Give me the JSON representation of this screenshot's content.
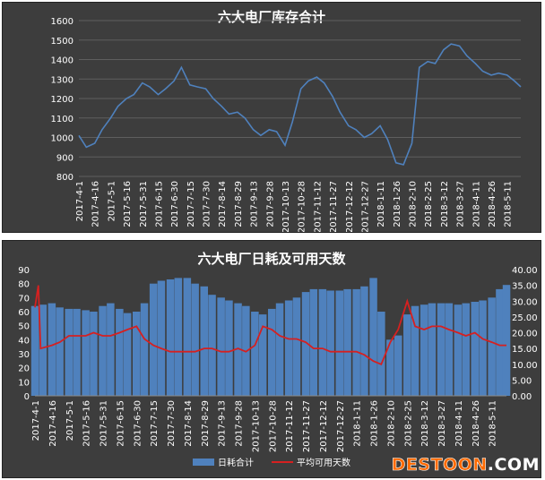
{
  "chart_data": [
    {
      "type": "line",
      "title": "六大电厂库存合计",
      "ylim": [
        800,
        1600
      ],
      "yticks": [
        800,
        900,
        1000,
        1100,
        1200,
        1300,
        1400,
        1500,
        1600
      ],
      "xtick_labels": [
        "2017-4-1",
        "2017-4-16",
        "2017-5-1",
        "2017-5-16",
        "2017-5-31",
        "2017-6-15",
        "2017-6-30",
        "2017-7-15",
        "2017-7-30",
        "2017-8-14",
        "2017-8-29",
        "2017-9-13",
        "2017-9-28",
        "2017-10-13",
        "2017-10-28",
        "2017-11-12",
        "2017-11-27",
        "2017-12-12",
        "2017-12-27",
        "2018-1-11",
        "2018-1-26",
        "2018-2-10",
        "2018-2-25",
        "2018-3-12",
        "2018-3-27",
        "2018-4-11",
        "2018-4-26",
        "2018-5-11"
      ],
      "grid": true,
      "series": [
        {
          "color": "#4f81bd",
          "x": [
            "2017-4-1",
            "2017-4-8",
            "2017-4-16",
            "2017-4-23",
            "2017-5-1",
            "2017-5-8",
            "2017-5-16",
            "2017-5-23",
            "2017-5-31",
            "2017-6-7",
            "2017-6-15",
            "2017-6-22",
            "2017-6-30",
            "2017-7-7",
            "2017-7-15",
            "2017-7-22",
            "2017-7-30",
            "2017-8-6",
            "2017-8-14",
            "2017-8-21",
            "2017-8-29",
            "2017-9-5",
            "2017-9-13",
            "2017-9-20",
            "2017-9-28",
            "2017-10-5",
            "2017-10-13",
            "2017-10-20",
            "2017-10-28",
            "2017-11-4",
            "2017-11-12",
            "2017-11-19",
            "2017-11-27",
            "2017-12-4",
            "2017-12-12",
            "2017-12-19",
            "2017-12-27",
            "2018-1-3",
            "2018-1-11",
            "2018-1-18",
            "2018-1-26",
            "2018-2-2",
            "2018-2-10",
            "2018-2-17",
            "2018-2-25",
            "2018-3-4",
            "2018-3-12",
            "2018-3-19",
            "2018-3-27",
            "2018-4-3",
            "2018-4-11",
            "2018-4-18",
            "2018-4-26",
            "2018-5-3",
            "2018-5-11",
            "2018-5-18",
            "2018-5-24"
          ],
          "values": [
            1010,
            950,
            970,
            1040,
            1100,
            1160,
            1200,
            1220,
            1280,
            1260,
            1220,
            1250,
            1290,
            1360,
            1270,
            1260,
            1250,
            1200,
            1160,
            1120,
            1130,
            1100,
            1040,
            1010,
            1040,
            1030,
            960,
            1080,
            1250,
            1290,
            1310,
            1280,
            1210,
            1130,
            1060,
            1040,
            1000,
            1020,
            1060,
            990,
            870,
            860,
            970,
            1360,
            1390,
            1380,
            1450,
            1480,
            1470,
            1420,
            1380,
            1340,
            1320,
            1330,
            1320,
            1290,
            1260
          ]
        }
      ]
    },
    {
      "type": "bar",
      "title": "六大电厂日耗及可用天数",
      "ylim": [
        0,
        90
      ],
      "yticks": [
        0,
        10,
        20,
        30,
        40,
        50,
        60,
        70,
        80,
        90
      ],
      "y2lim": [
        0,
        40
      ],
      "y2ticks": [
        "0.00",
        "5.00",
        "10.00",
        "15.00",
        "20.00",
        "25.00",
        "30.00",
        "35.00",
        "40.00"
      ],
      "xtick_labels": [
        "2017-4-1",
        "2017-4-16",
        "2017-5-1",
        "2017-5-16",
        "2017-5-31",
        "2017-6-15",
        "2017-6-30",
        "2017-7-15",
        "2017-7-30",
        "2017-8-14",
        "2017-8-29",
        "2017-9-13",
        "2017-9-28",
        "2017-10-13",
        "2017-10-28",
        "2017-11-12",
        "2017-11-27",
        "2017-12-12",
        "2017-12-27",
        "2018-1-11",
        "2018-1-26",
        "2018-2-10",
        "2018-2-25",
        "2018-3-12",
        "2018-3-27",
        "2018-4-11",
        "2018-4-26",
        "2018-5-11"
      ],
      "legend": {
        "position": "bottom"
      },
      "series": [
        {
          "name": "日耗合计",
          "color": "#4f81bd",
          "axis": "left",
          "x": [
            "2017-4-1",
            "2017-4-8",
            "2017-4-16",
            "2017-4-23",
            "2017-5-1",
            "2017-5-8",
            "2017-5-16",
            "2017-5-23",
            "2017-5-31",
            "2017-6-7",
            "2017-6-15",
            "2017-6-22",
            "2017-6-30",
            "2017-7-7",
            "2017-7-15",
            "2017-7-22",
            "2017-7-30",
            "2017-8-6",
            "2017-8-14",
            "2017-8-21",
            "2017-8-29",
            "2017-9-5",
            "2017-9-13",
            "2017-9-20",
            "2017-9-28",
            "2017-10-5",
            "2017-10-13",
            "2017-10-20",
            "2017-10-28",
            "2017-11-4",
            "2017-11-12",
            "2017-11-19",
            "2017-11-27",
            "2017-12-4",
            "2017-12-12",
            "2017-12-19",
            "2017-12-27",
            "2018-1-3",
            "2018-1-11",
            "2018-1-18",
            "2018-1-26",
            "2018-2-2",
            "2018-2-10",
            "2018-2-17",
            "2018-2-25",
            "2018-3-4",
            "2018-3-12",
            "2018-3-19",
            "2018-3-27",
            "2018-4-3",
            "2018-4-11",
            "2018-4-18",
            "2018-4-26",
            "2018-5-3",
            "2018-5-11",
            "2018-5-18",
            "2018-5-24"
          ],
          "values": [
            64,
            65,
            66,
            63,
            62,
            62,
            61,
            60,
            64,
            66,
            62,
            59,
            60,
            66,
            80,
            82,
            83,
            84,
            84,
            80,
            78,
            72,
            70,
            68,
            66,
            64,
            60,
            58,
            62,
            66,
            68,
            70,
            74,
            76,
            76,
            75,
            75,
            76,
            76,
            78,
            84,
            60,
            40,
            43,
            58,
            64,
            65,
            66,
            66,
            66,
            65,
            66,
            67,
            68,
            70,
            76,
            79
          ]
        },
        {
          "name": "平均可用天数",
          "color": "#d62020",
          "axis": "right",
          "x": [
            "2017-4-1",
            "2017-4-4",
            "2017-4-6",
            "2017-4-16",
            "2017-4-23",
            "2017-5-1",
            "2017-5-8",
            "2017-5-16",
            "2017-5-23",
            "2017-5-31",
            "2017-6-7",
            "2017-6-15",
            "2017-6-22",
            "2017-6-30",
            "2017-7-7",
            "2017-7-15",
            "2017-7-22",
            "2017-7-30",
            "2017-8-6",
            "2017-8-14",
            "2017-8-21",
            "2017-8-29",
            "2017-9-5",
            "2017-9-13",
            "2017-9-20",
            "2017-9-28",
            "2017-10-5",
            "2017-10-13",
            "2017-10-20",
            "2017-10-28",
            "2017-11-4",
            "2017-11-12",
            "2017-11-19",
            "2017-11-27",
            "2017-12-4",
            "2017-12-12",
            "2017-12-19",
            "2017-12-27",
            "2018-1-3",
            "2018-1-11",
            "2018-1-18",
            "2018-1-26",
            "2018-2-2",
            "2018-2-10",
            "2018-2-17",
            "2018-2-25",
            "2018-3-4",
            "2018-3-12",
            "2018-3-19",
            "2018-3-27",
            "2018-4-3",
            "2018-4-11",
            "2018-4-18",
            "2018-4-26",
            "2018-5-3",
            "2018-5-11",
            "2018-5-18",
            "2018-5-24"
          ],
          "values": [
            28,
            35,
            15,
            16,
            17,
            19,
            19,
            19,
            20,
            19,
            19,
            20,
            21,
            22,
            18,
            16,
            15,
            14,
            14,
            14,
            14,
            15,
            15,
            14,
            14,
            15,
            14,
            16,
            22,
            21,
            19,
            18,
            18,
            17,
            15,
            15,
            14,
            14,
            14,
            14,
            13,
            11,
            10,
            17,
            21,
            30,
            22,
            21,
            22,
            22,
            21,
            20,
            19,
            20,
            18,
            17,
            16,
            16
          ]
        }
      ]
    }
  ],
  "watermark": {
    "main": "DESTOON",
    "suffix": ".COM"
  }
}
